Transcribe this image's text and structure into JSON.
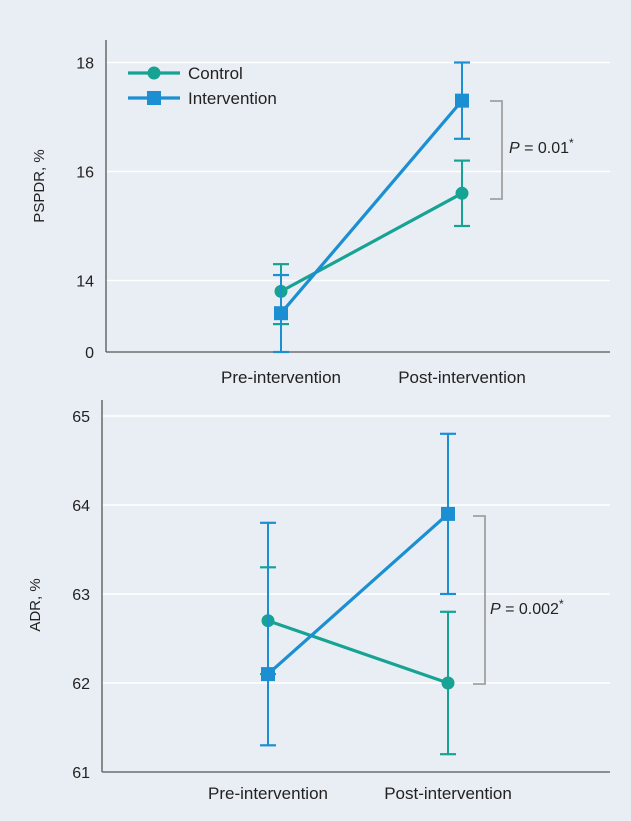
{
  "chart_data": [
    {
      "type": "line",
      "ylabel": "PSPDR, %",
      "xlabel": "",
      "categories": [
        "Pre-intervention",
        "Post-intervention"
      ],
      "y_ticks": [
        "0",
        "14",
        "16",
        "18"
      ],
      "y_axis_break": true,
      "ylim": [
        0,
        18
      ],
      "grid": true,
      "legend": "top-left",
      "series": [
        {
          "name": "Control",
          "marker": "circle",
          "color": "#16a394",
          "values": [
            13.8,
            15.6
          ],
          "error_low": [
            13.2,
            15.0
          ],
          "error_high": [
            14.3,
            16.2
          ]
        },
        {
          "name": "Intervention",
          "marker": "square",
          "color": "#1b8fd2",
          "values": [
            13.4,
            17.3
          ],
          "error_low": [
            12.8,
            16.6
          ],
          "error_high": [
            14.1,
            18.0
          ]
        }
      ],
      "annotation": {
        "prefix": "P",
        "text": " = 0.01",
        "mark": "*",
        "between": "post-intervention values"
      }
    },
    {
      "type": "line",
      "ylabel": "ADR, %",
      "xlabel": "",
      "categories": [
        "Pre-intervention",
        "Post-intervention"
      ],
      "y_ticks": [
        "61",
        "62",
        "63",
        "64",
        "65"
      ],
      "ylim": [
        61,
        65
      ],
      "grid": true,
      "series": [
        {
          "name": "Control",
          "marker": "circle",
          "color": "#16a394",
          "values": [
            62.7,
            62.0
          ],
          "error_low": [
            62.1,
            61.2
          ],
          "error_high": [
            63.3,
            62.8
          ]
        },
        {
          "name": "Intervention",
          "marker": "square",
          "color": "#1b8fd2",
          "values": [
            62.1,
            63.9
          ],
          "error_low": [
            61.3,
            63.0
          ],
          "error_high": [
            63.8,
            64.8
          ]
        }
      ],
      "annotation": {
        "prefix": "P",
        "text": " = 0.002",
        "mark": "*",
        "between": "post-intervention values"
      }
    }
  ]
}
